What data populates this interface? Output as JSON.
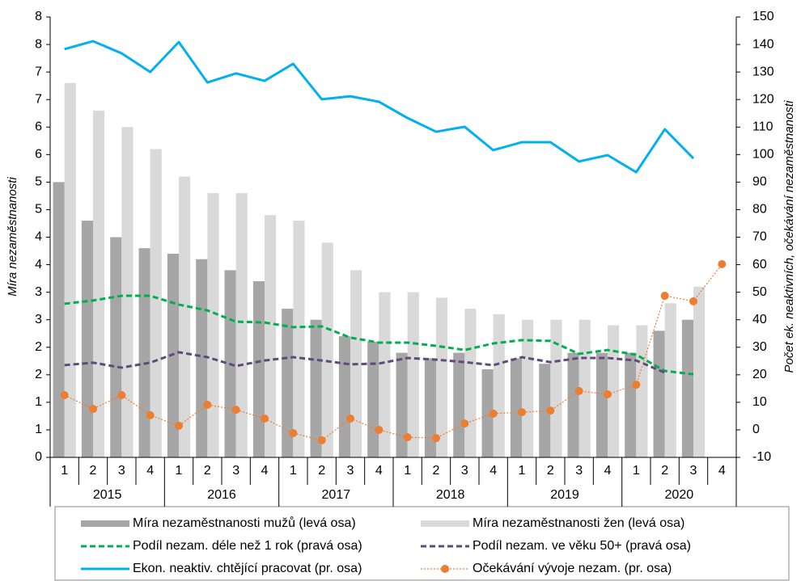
{
  "chart_data": {
    "type": "combo",
    "y_label": "Míra nezaměstnanosti",
    "y2_label": "Počet ek. neaktivních, očekávání nezaměstnanosti",
    "categories": [
      "1",
      "2",
      "3",
      "4",
      "1",
      "2",
      "3",
      "4",
      "1",
      "2",
      "3",
      "4",
      "1",
      "2",
      "3",
      "4",
      "1",
      "2",
      "3",
      "4",
      "1",
      "2",
      "3",
      "4"
    ],
    "years": [
      "2015",
      "2016",
      "2017",
      "2018",
      "2019",
      "2020"
    ],
    "ylim": [
      0,
      8
    ],
    "yticks": [
      0,
      {
        "value": 0.5,
        "label": "1"
      },
      1,
      {
        "value": 1.5,
        "label": "2"
      },
      2,
      {
        "value": 2.5,
        "label": "3"
      },
      3,
      {
        "value": 3.5,
        "label": "4"
      },
      4,
      {
        "value": 4.5,
        "label": "5"
      },
      5,
      {
        "value": 5.5,
        "label": "6"
      },
      6,
      {
        "value": 6.5,
        "label": "7"
      },
      7,
      {
        "value": 7.5,
        "label": "8"
      },
      8
    ],
    "y2lim": [
      -10,
      150
    ],
    "y2ticks": [
      -10,
      0,
      10,
      20,
      30,
      40,
      50,
      60,
      70,
      80,
      90,
      100,
      110,
      120,
      130,
      140,
      150
    ],
    "grid": false,
    "series": [
      {
        "name": "Míra nezaměstnanosti mužů (levá osa)",
        "kind": "bar",
        "color": "#a6a6a6",
        "values": [
          5.0,
          4.3,
          4.0,
          3.8,
          3.7,
          3.6,
          3.4,
          3.2,
          2.7,
          2.5,
          2.2,
          2.1,
          1.9,
          1.8,
          1.9,
          1.6,
          1.8,
          1.7,
          1.9,
          1.9,
          1.9,
          2.3,
          2.5,
          null
        ]
      },
      {
        "name": "Míra nezaměstnanosti žen (levá osa)",
        "kind": "bar",
        "color": "#d9d9d9",
        "values": [
          6.8,
          6.3,
          6.0,
          5.6,
          5.1,
          4.8,
          4.8,
          4.4,
          4.3,
          3.9,
          3.4,
          3.0,
          3.0,
          2.9,
          2.7,
          2.6,
          2.5,
          2.5,
          2.5,
          2.4,
          2.4,
          2.8,
          3.1,
          null
        ]
      },
      {
        "name": "Podíl nezam. déle než 1 rok (pravá osa)",
        "kind": "line",
        "style": "dashed",
        "axis": "y2",
        "color": "#00b050",
        "values": [
          45.8,
          47.0,
          48.7,
          48.7,
          45.5,
          43.4,
          39.3,
          39.0,
          37.3,
          37.6,
          33.5,
          31.7,
          31.7,
          30.5,
          29.0,
          31.4,
          32.6,
          32.3,
          27.6,
          29.0,
          27.3,
          21.4,
          20.2,
          null
        ]
      },
      {
        "name": "Podíl nezam. ve věku 50+  (pravá osa)",
        "kind": "line",
        "style": "dashed",
        "axis": "y2",
        "color": "#604a7b",
        "values": [
          23.5,
          24.4,
          22.6,
          24.4,
          28.2,
          26.4,
          23.2,
          25.2,
          26.4,
          25.2,
          23.8,
          24.1,
          26.1,
          25.5,
          24.6,
          23.5,
          26.4,
          24.6,
          26.1,
          26.1,
          25.2,
          20.8,
          null,
          null
        ]
      },
      {
        "name": "Ekon. neaktiv. chtějící pracovat (pr. osa)",
        "kind": "line",
        "style": "solid",
        "axis": "y2",
        "color": "#00b0f0",
        "values": [
          138.3,
          141.2,
          136.8,
          130.0,
          140.9,
          126.2,
          129.5,
          126.8,
          133.0,
          120.1,
          121.2,
          119.2,
          113.3,
          108.3,
          110.1,
          101.6,
          104.5,
          104.5,
          97.5,
          99.8,
          93.6,
          109.2,
          98.6,
          null
        ]
      },
      {
        "name": "Očekávání vývoje nezam. (pr. osa)",
        "kind": "line",
        "style": "dotted",
        "marker": "circle",
        "axis": "y2",
        "color": "#ed7d31",
        "values": [
          12.6,
          7.6,
          12.6,
          5.3,
          1.5,
          9.1,
          7.3,
          4.1,
          -1.2,
          -3.8,
          4.1,
          0.0,
          -2.7,
          -3.0,
          2.3,
          5.9,
          6.4,
          7.0,
          14.1,
          12.9,
          16.4,
          48.7,
          46.7,
          60.2
        ]
      }
    ]
  }
}
